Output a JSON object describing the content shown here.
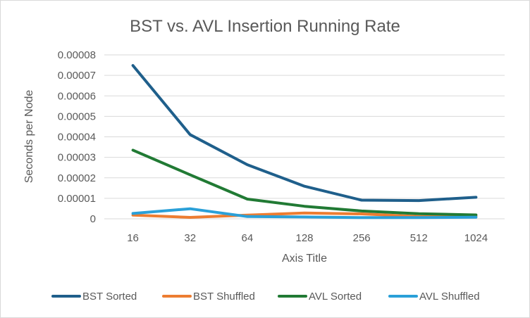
{
  "chart_data": {
    "type": "line",
    "title": "BST vs. AVL  Insertion Running Rate",
    "xlabel": "Axis Title",
    "ylabel": "Seconds per Node",
    "categories": [
      "16",
      "32",
      "64",
      "128",
      "256",
      "512",
      "1024"
    ],
    "y_ticks": [
      "0",
      "0.00001",
      "0.00002",
      "0.00003",
      "0.00004",
      "0.00005",
      "0.00006",
      "0.00007",
      "0.00008"
    ],
    "ylim": [
      0,
      8e-05
    ],
    "grid": true,
    "legend_position": "bottom",
    "series": [
      {
        "name": "BST Sorted",
        "color": "#1f5f8b",
        "values": [
          7.48e-05,
          4.11e-05,
          2.64e-05,
          1.59e-05,
          9.1e-06,
          8.9e-06,
          1.05e-05
        ]
      },
      {
        "name": "BST Shuffled",
        "color": "#ed7d31",
        "values": [
          1.8e-06,
          7e-07,
          1.8e-06,
          2.8e-06,
          2.4e-06,
          1.1e-06,
          1.3e-06
        ]
      },
      {
        "name": "AVL Sorted",
        "color": "#217a34",
        "values": [
          3.35e-05,
          2.15e-05,
          9.6e-06,
          6.1e-06,
          3.8e-06,
          2.5e-06,
          1.9e-06
        ]
      },
      {
        "name": "AVL Shuffled",
        "color": "#2aa0d8",
        "values": [
          2.6e-06,
          4.9e-06,
          1.1e-06,
          9e-07,
          6e-07,
          6e-07,
          8e-07
        ]
      }
    ]
  }
}
